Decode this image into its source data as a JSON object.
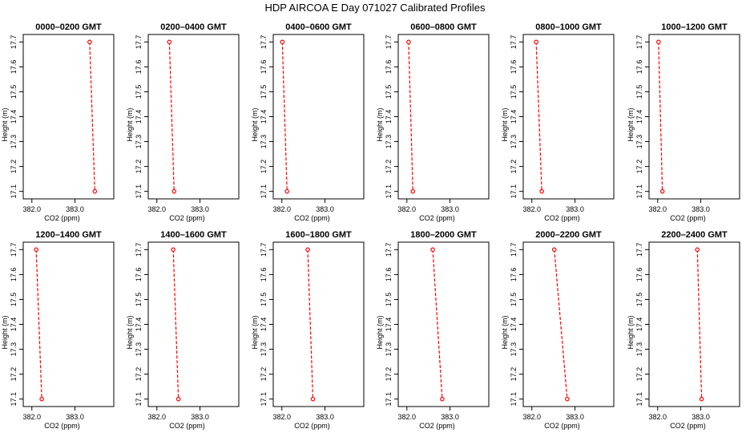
{
  "figure": {
    "title": "HDP  AIRCOA E  Day 071027  Calibrated Profiles"
  },
  "chart_data": {
    "type": "line",
    "xlabel": "CO2 (ppm)",
    "ylabel": "Height (m)",
    "xlim": [
      381.8,
      383.9
    ],
    "ylim": [
      17.07,
      17.73
    ],
    "xticks": [
      382.0,
      383.0
    ],
    "xtick_labels": [
      "382.0",
      "383.0"
    ],
    "yticks": [
      17.1,
      17.2,
      17.3,
      17.4,
      17.5,
      17.6,
      17.7
    ],
    "ytick_labels": [
      "17.1",
      "17.2",
      "17.3",
      "17.4",
      "17.5",
      "17.6",
      "17.7"
    ],
    "line_color": "#ff0000",
    "panels": [
      {
        "title": "0000–0200 GMT",
        "points": [
          {
            "x": 383.34,
            "y": 17.7
          },
          {
            "x": 383.46,
            "y": 17.1
          }
        ]
      },
      {
        "title": "0200–0400 GMT",
        "points": [
          {
            "x": 382.29,
            "y": 17.7
          },
          {
            "x": 382.4,
            "y": 17.1
          }
        ]
      },
      {
        "title": "0400–0600 GMT",
        "points": [
          {
            "x": 382.01,
            "y": 17.7
          },
          {
            "x": 382.12,
            "y": 17.1
          }
        ]
      },
      {
        "title": "0600–0800 GMT",
        "points": [
          {
            "x": 382.04,
            "y": 17.7
          },
          {
            "x": 382.14,
            "y": 17.1
          }
        ]
      },
      {
        "title": "0800–1000 GMT",
        "points": [
          {
            "x": 382.1,
            "y": 17.7
          },
          {
            "x": 382.23,
            "y": 17.1
          }
        ]
      },
      {
        "title": "1000–1200 GMT",
        "points": [
          {
            "x": 382.02,
            "y": 17.7
          },
          {
            "x": 382.11,
            "y": 17.1
          }
        ]
      },
      {
        "title": "1200–1400 GMT",
        "points": [
          {
            "x": 382.1,
            "y": 17.7
          },
          {
            "x": 382.23,
            "y": 17.1
          }
        ]
      },
      {
        "title": "1400–1600 GMT",
        "points": [
          {
            "x": 382.38,
            "y": 17.7
          },
          {
            "x": 382.5,
            "y": 17.1
          }
        ]
      },
      {
        "title": "1600–1800 GMT",
        "points": [
          {
            "x": 382.6,
            "y": 17.7
          },
          {
            "x": 382.72,
            "y": 17.1
          }
        ]
      },
      {
        "title": "1800–2000 GMT",
        "points": [
          {
            "x": 382.6,
            "y": 17.7
          },
          {
            "x": 382.82,
            "y": 17.1
          }
        ]
      },
      {
        "title": "2000–2200 GMT",
        "points": [
          {
            "x": 382.52,
            "y": 17.7
          },
          {
            "x": 382.82,
            "y": 17.1
          }
        ]
      },
      {
        "title": "2200–2400 GMT",
        "points": [
          {
            "x": 382.92,
            "y": 17.7
          },
          {
            "x": 383.02,
            "y": 17.1
          }
        ]
      }
    ]
  }
}
